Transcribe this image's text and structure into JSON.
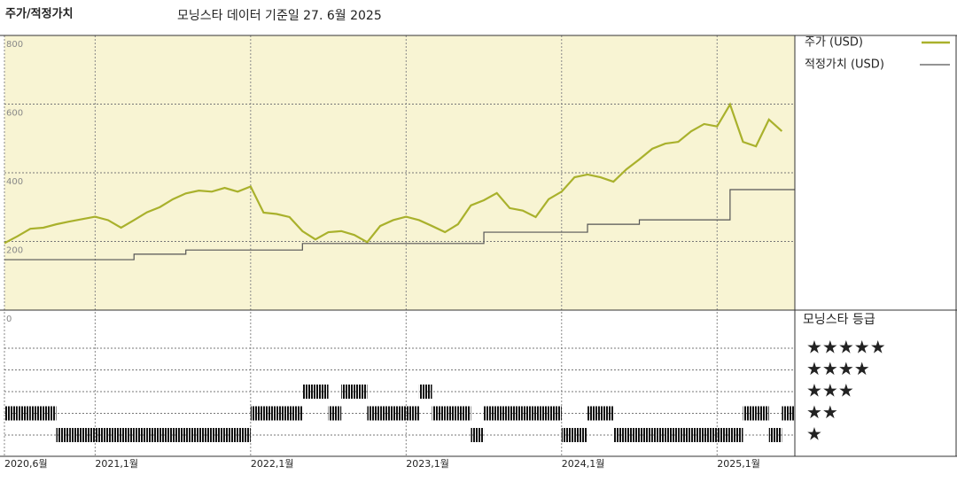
{
  "chart_data": {
    "type": "line",
    "title": "주가/적정가치",
    "subtitle": "모닝스타 데이터 기준일 27. 6월 2025",
    "xlim": [
      "2020-06",
      "2025-07"
    ],
    "xticks": [
      {
        "value": "2020-06",
        "label": "2020,6월"
      },
      {
        "value": "2021-01",
        "label": "2021,1월"
      },
      {
        "value": "2022-01",
        "label": "2022,1월"
      },
      {
        "value": "2023-01",
        "label": "2023,1월"
      },
      {
        "value": "2024-01",
        "label": "2024,1월"
      },
      {
        "value": "2025-01",
        "label": "2025,1월"
      }
    ],
    "ylim": [
      0,
      800
    ],
    "yticks": [
      0,
      200,
      400,
      600,
      800
    ],
    "grid": true,
    "background": "#f8f4d3",
    "x": [
      "2020-06",
      "2020-07",
      "2020-08",
      "2020-09",
      "2020-10",
      "2020-11",
      "2020-12",
      "2021-01",
      "2021-02",
      "2021-03",
      "2021-04",
      "2021-05",
      "2021-06",
      "2021-07",
      "2021-08",
      "2021-09",
      "2021-10",
      "2021-11",
      "2021-12",
      "2022-01",
      "2022-02",
      "2022-03",
      "2022-04",
      "2022-05",
      "2022-06",
      "2022-07",
      "2022-08",
      "2022-09",
      "2022-10",
      "2022-11",
      "2022-12",
      "2023-01",
      "2023-02",
      "2023-03",
      "2023-04",
      "2023-05",
      "2023-06",
      "2023-07",
      "2023-08",
      "2023-09",
      "2023-10",
      "2023-11",
      "2023-12",
      "2024-01",
      "2024-02",
      "2024-03",
      "2024-04",
      "2024-05",
      "2024-06",
      "2024-07",
      "2024-08",
      "2024-09",
      "2024-10",
      "2024-11",
      "2024-12",
      "2025-01",
      "2025-02",
      "2025-03",
      "2025-04",
      "2025-05",
      "2025-06"
    ],
    "series": [
      {
        "name": "주가 (USD)",
        "color": "#a9b12c",
        "values": [
          195,
          215,
          237,
          240,
          250,
          258,
          265,
          272,
          262,
          240,
          262,
          285,
          300,
          323,
          340,
          348,
          345,
          356,
          345,
          360,
          284,
          280,
          271,
          230,
          206,
          227,
          230,
          219,
          198,
          245,
          262,
          272,
          262,
          245,
          227,
          250,
          305,
          320,
          341,
          297,
          290,
          271,
          323,
          345,
          387,
          395,
          387,
          374,
          410,
          439,
          470,
          485,
          490,
          521,
          542,
          535,
          599,
          490,
          477,
          555,
          521
        ]
      },
      {
        "name": "적정가치 (USD)",
        "color": "#555555",
        "step": true,
        "x": [
          "2020-06",
          "2021-04",
          "2021-08",
          "2022-05",
          "2023-07",
          "2024-03",
          "2024-07",
          "2025-02"
        ],
        "values": [
          147,
          163,
          175,
          194,
          227,
          250,
          263,
          351
        ]
      }
    ],
    "ratings": {
      "title": "모닝스타 등급",
      "levels": [
        "★★★★★",
        "★★★★",
        "★★★",
        "★★",
        "★"
      ],
      "color": "#111111",
      "values": [
        2,
        2,
        2,
        2,
        1,
        1,
        1,
        1,
        1,
        1,
        1,
        1,
        1,
        1,
        1,
        1,
        1,
        1,
        1,
        2,
        2,
        2,
        2,
        3,
        3,
        2,
        3,
        3,
        2,
        2,
        2,
        2,
        3,
        2,
        2,
        2,
        1,
        2,
        2,
        2,
        2,
        2,
        2,
        1,
        1,
        2,
        2,
        1,
        1,
        1,
        1,
        1,
        1,
        1,
        1,
        1,
        1,
        2,
        2,
        1,
        2
      ]
    }
  }
}
